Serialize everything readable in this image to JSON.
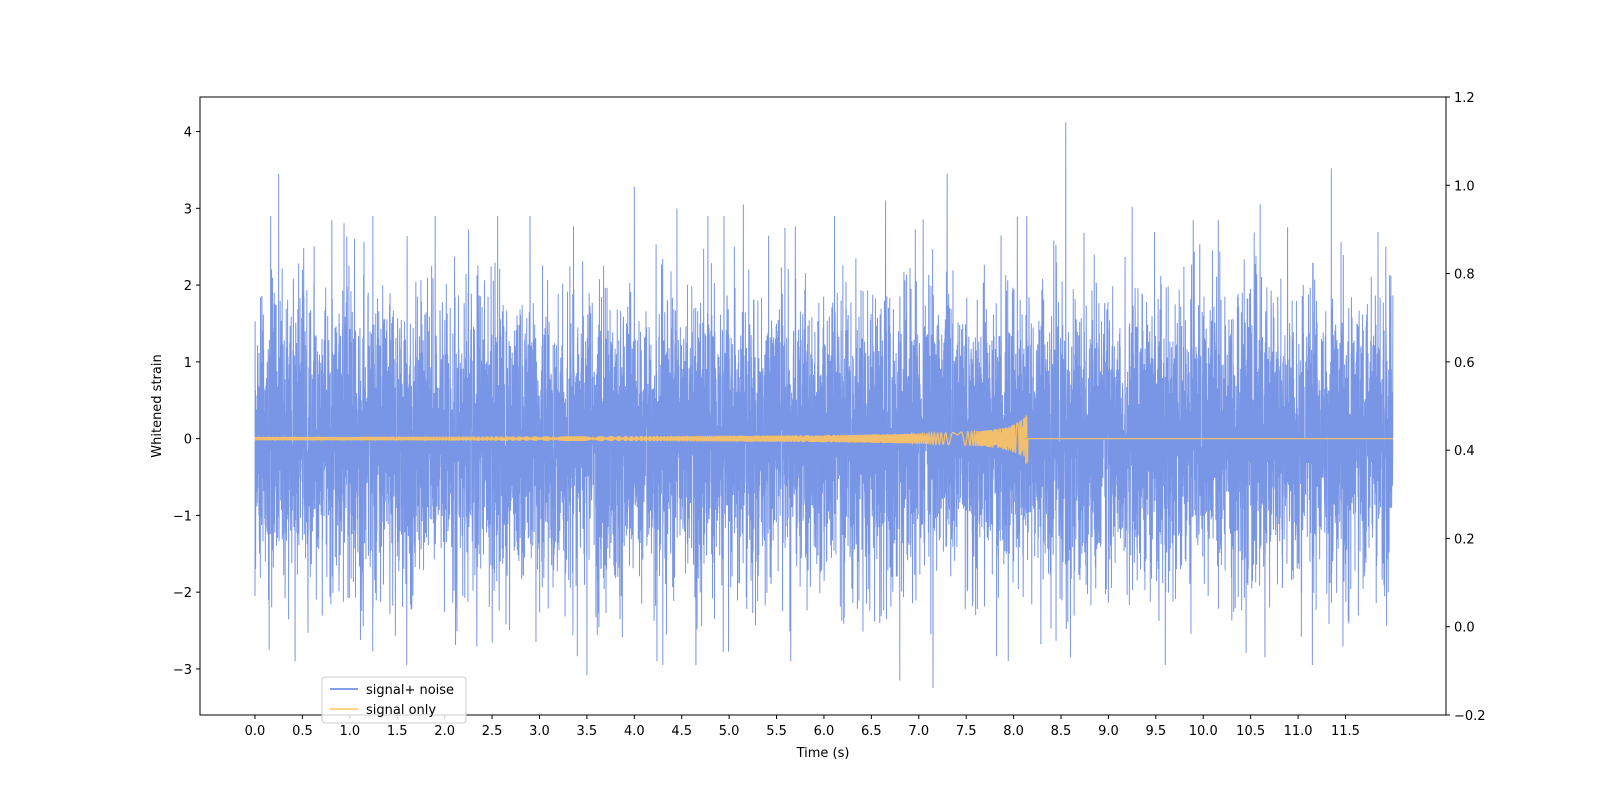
{
  "chart_data": {
    "type": "line",
    "title": "",
    "xlabel": "Time (s)",
    "ylabel": "Whitened strain",
    "xlim": [
      -0.58,
      12.56
    ],
    "ylim": [
      -3.6,
      4.45
    ],
    "y2lim": [
      -0.2,
      1.2
    ],
    "x_ticks": [
      "0.0",
      "0.5",
      "1.0",
      "1.5",
      "2.0",
      "2.5",
      "3.0",
      "3.5",
      "4.0",
      "4.5",
      "5.0",
      "5.5",
      "6.0",
      "6.5",
      "7.0",
      "7.5",
      "8.0",
      "8.5",
      "9.0",
      "9.5",
      "10.0",
      "10.5",
      "11.0",
      "11.5"
    ],
    "y_ticks": [
      "−3",
      "−2",
      "−1",
      "0",
      "1",
      "2",
      "3",
      "4"
    ],
    "y2_ticks": [
      "−0.2",
      "0.0",
      "0.2",
      "0.4",
      "0.6",
      "0.8",
      "1.0",
      "1.2"
    ],
    "grid": false,
    "legend_position": "lower-left",
    "series": [
      {
        "name": "signal+ noise",
        "color": "#5b7fe0",
        "x_range": [
          0.0,
          12.0
        ],
        "typical_band": [
          -1.5,
          1.5
        ],
        "envelope_max": [
          [
            0.0,
            2.05
          ],
          [
            0.25,
            3.45
          ],
          [
            0.5,
            2.2
          ],
          [
            1.05,
            2.6
          ],
          [
            1.9,
            2.9
          ],
          [
            2.9,
            2.9
          ],
          [
            4.0,
            3.28
          ],
          [
            4.45,
            3.0
          ],
          [
            5.15,
            3.05
          ],
          [
            6.65,
            3.1
          ],
          [
            7.3,
            3.45
          ],
          [
            8.55,
            4.12
          ],
          [
            9.25,
            3.02
          ],
          [
            10.6,
            3.05
          ],
          [
            11.35,
            3.52
          ],
          [
            11.95,
            3.05
          ]
        ],
        "envelope_min": [
          [
            0.0,
            -2.05
          ],
          [
            0.15,
            -2.75
          ],
          [
            1.6,
            -2.95
          ],
          [
            3.5,
            -3.08
          ],
          [
            4.3,
            -2.95
          ],
          [
            4.65,
            -2.95
          ],
          [
            6.8,
            -3.15
          ],
          [
            7.15,
            -3.25
          ],
          [
            8.6,
            -2.85
          ],
          [
            9.6,
            -2.95
          ],
          [
            10.65,
            -2.85
          ],
          [
            11.15,
            -2.95
          ],
          [
            11.95,
            -2.0
          ]
        ]
      },
      {
        "name": "signal only",
        "color": "#ffc45e",
        "x_range": [
          0.0,
          12.0
        ],
        "chirp_peak_time": 8.14,
        "chirp_peak_amplitude": [
          -0.3,
          0.42
        ],
        "baseline": 0
      }
    ]
  }
}
